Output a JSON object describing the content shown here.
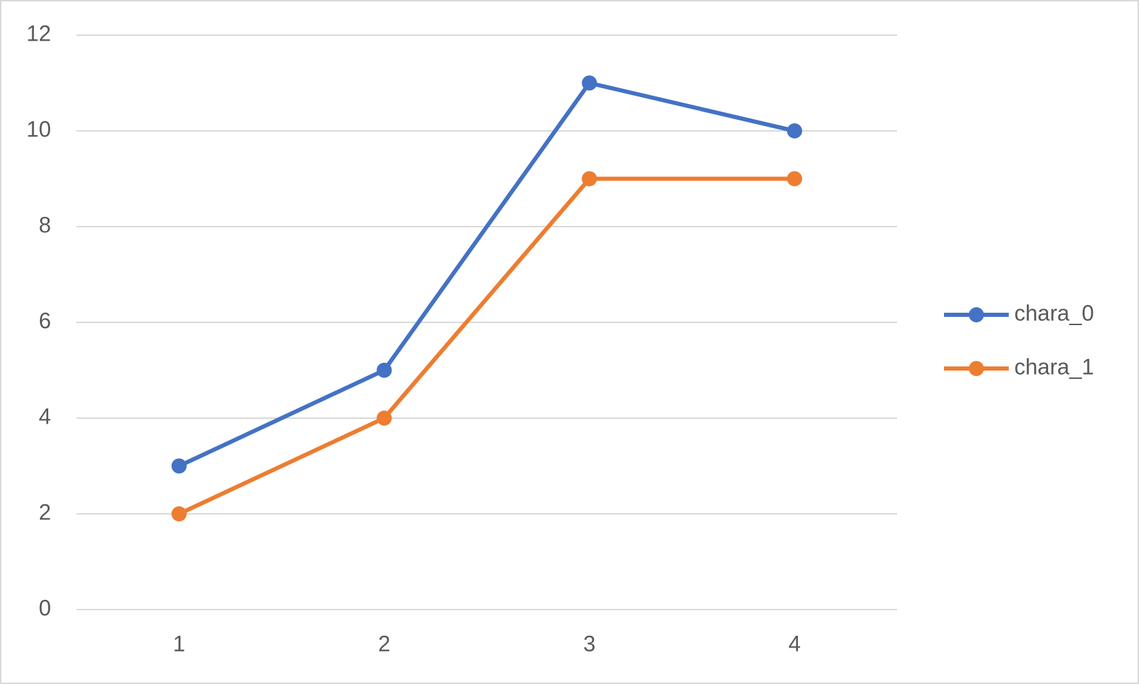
{
  "chart_data": {
    "type": "line",
    "categories": [
      "1",
      "2",
      "3",
      "4"
    ],
    "series": [
      {
        "name": "chara_0",
        "color": "#4472c4",
        "values": [
          3,
          5,
          11,
          10
        ]
      },
      {
        "name": "chara_1",
        "color": "#ed7d31",
        "values": [
          2,
          4,
          9,
          9
        ]
      }
    ],
    "ylim": [
      0,
      12
    ],
    "yticks": [
      0,
      2,
      4,
      6,
      8,
      10,
      12
    ],
    "grid": true,
    "legend": "right"
  }
}
